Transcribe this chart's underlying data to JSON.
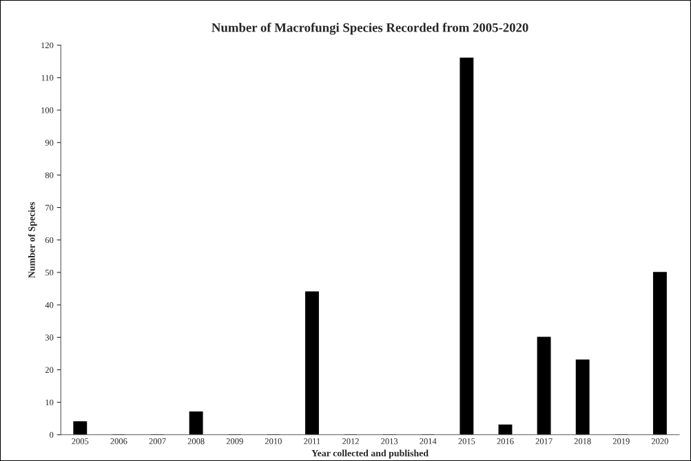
{
  "chart_data": {
    "type": "bar",
    "title": "Number of Macrofungi Species Recorded from 2005-2020",
    "xlabel": "Year collected and published",
    "ylabel": "Number of Species",
    "categories": [
      "2005",
      "2006",
      "2007",
      "2008",
      "2009",
      "2010",
      "2011",
      "2012",
      "2013",
      "2014",
      "2015",
      "2016",
      "2017",
      "2018",
      "2019",
      "2020"
    ],
    "values": [
      4,
      0,
      0,
      7,
      0,
      0,
      44,
      0,
      0,
      0,
      116,
      3,
      30,
      23,
      0,
      50
    ],
    "color": "#000000",
    "ylim": [
      0,
      120
    ],
    "yticks": [
      0,
      10,
      20,
      30,
      40,
      50,
      60,
      70,
      80,
      90,
      100,
      110,
      120
    ],
    "grid": false
  }
}
